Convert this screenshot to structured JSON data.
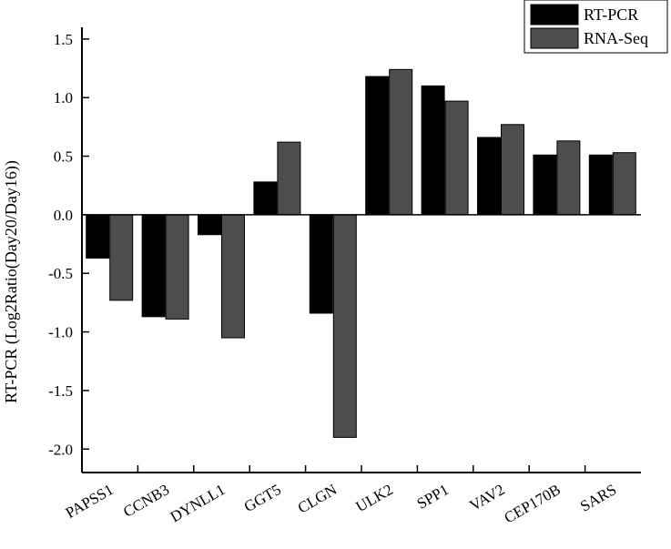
{
  "chart_data": {
    "type": "bar",
    "ylabel": "RT-PCR (Log2Ratio(Day20/Day16))",
    "ylim": [
      -2.2,
      1.6
    ],
    "yticks": [
      -2.0,
      -1.5,
      -1.0,
      -0.5,
      0.0,
      0.5,
      1.0,
      1.5
    ],
    "ytick_labels": [
      "-2.0",
      "-1.5",
      "-1.0",
      "-0.5",
      "0.0",
      "0.5",
      "1.0",
      "1.5"
    ],
    "categories": [
      "PAPSS1",
      "CCNB3",
      "DYNLL1",
      "GGT5",
      "CLGN",
      "ULK2",
      "SPP1",
      "VAV2",
      "CEP170B",
      "SARS"
    ],
    "series": [
      {
        "name": "RT-PCR",
        "color": "#000000",
        "values": [
          -0.37,
          -0.87,
          -0.17,
          0.28,
          -0.84,
          1.18,
          1.1,
          0.66,
          0.51,
          0.51
        ]
      },
      {
        "name": "RNA-Seq",
        "color": "#4d4d4d",
        "values": [
          -0.73,
          -0.89,
          -1.05,
          0.62,
          -1.9,
          1.24,
          0.97,
          0.77,
          0.63,
          0.53
        ]
      }
    ],
    "legend_position": "top-right",
    "grid": false
  }
}
